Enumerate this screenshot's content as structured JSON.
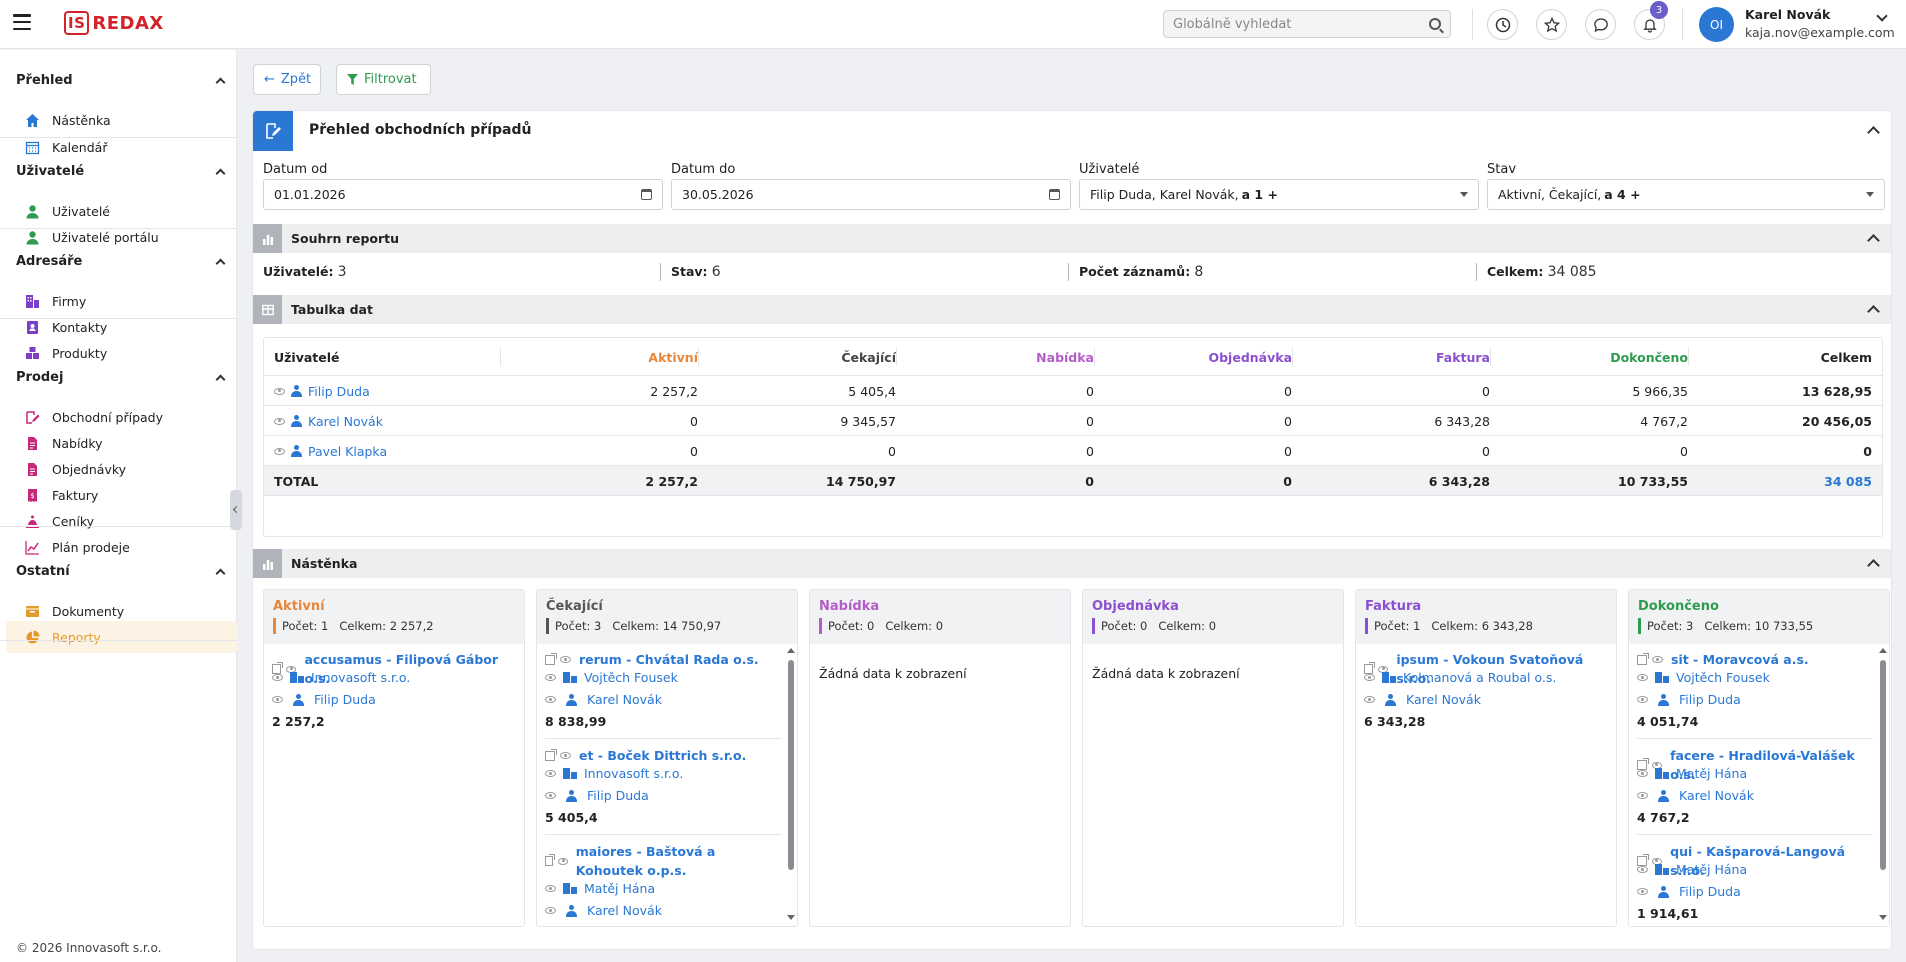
{
  "header": {
    "logo_box": "IS",
    "logo_text": "REDAX",
    "search_placeholder": "Globálně vyhledat",
    "notif_count": "3",
    "avatar_initials": "OI",
    "user_name": "Karel Novák",
    "user_email": "kaja.nov@example.com"
  },
  "sidebar": {
    "sections": [
      {
        "title": "Přehled",
        "items": [
          {
            "label": "Nástěnka",
            "icon": "home-icon"
          },
          {
            "label": "Kalendář",
            "icon": "calendar-icon"
          }
        ]
      },
      {
        "title": "Uživatelé",
        "items": [
          {
            "label": "Uživatelé",
            "icon": "user-icon"
          },
          {
            "label": "Uživatelé portálu",
            "icon": "user-icon"
          }
        ]
      },
      {
        "title": "Adresáře",
        "items": [
          {
            "label": "Firmy",
            "icon": "building-icon"
          },
          {
            "label": "Kontakty",
            "icon": "contact-icon"
          },
          {
            "label": "Produkty",
            "icon": "product-icon"
          }
        ]
      },
      {
        "title": "Prodej",
        "items": [
          {
            "label": "Obchodní případy",
            "icon": "deal-icon"
          },
          {
            "label": "Nabídky",
            "icon": "document-icon"
          },
          {
            "label": "Objednávky",
            "icon": "document-icon"
          },
          {
            "label": "Faktury",
            "icon": "invoice-icon"
          },
          {
            "label": "Ceníky",
            "icon": "pricelist-icon"
          },
          {
            "label": "Plán prodeje",
            "icon": "chart-line-icon"
          }
        ]
      },
      {
        "title": "Ostatní",
        "items": [
          {
            "label": "Dokumenty",
            "icon": "folder-icon"
          },
          {
            "label": "Reporty",
            "icon": "pie-chart-icon"
          }
        ]
      }
    ],
    "footer": "© 2026 Innovasoft s.r.o."
  },
  "toolbar": {
    "back_label": "Zpět",
    "filter_label": "Filtrovat"
  },
  "panel": {
    "title": "Přehled obchodních případů"
  },
  "filters": {
    "date_from": {
      "label": "Datum od",
      "value": "01.01.2026"
    },
    "date_to": {
      "label": "Datum do",
      "value": "30.05.2026"
    },
    "users": {
      "label": "Uživatelé",
      "value": "Filip Duda, Karel Novák, ",
      "more": "a 1 +"
    },
    "state": {
      "label": "Stav",
      "value": "Aktivní, Čekající, ",
      "more": "a 4 +"
    }
  },
  "summary": {
    "title": "Souhrn reportu",
    "users_label": "Uživatelé:",
    "users_value": "3",
    "state_label": "Stav:",
    "state_value": "6",
    "records_label": "Počet záznamů:",
    "records_value": "8",
    "total_label": "Celkem:",
    "total_value": "34 085"
  },
  "table": {
    "title": "Tabulka dat",
    "columns": [
      "Uživatelé",
      "Aktivní",
      "Čekající",
      "Nabídka",
      "Objednávka",
      "Faktura",
      "Dokončeno",
      "Celkem"
    ],
    "column_colors": [
      "#222222",
      "#e8873a",
      "#444444",
      "#b45cc8",
      "#8c4fcf",
      "#8c4fcf",
      "#2e9b4f",
      "#222222"
    ],
    "rows": [
      {
        "name": "Filip Duda",
        "values": [
          "2 257,2",
          "5 405,4",
          "0",
          "0",
          "0",
          "5 966,35",
          "13 628,95"
        ]
      },
      {
        "name": "Karel Novák",
        "values": [
          "0",
          "9 345,57",
          "0",
          "0",
          "6 343,28",
          "4 767,2",
          "20 456,05"
        ]
      },
      {
        "name": "Pavel Klapka",
        "values": [
          "0",
          "0",
          "0",
          "0",
          "0",
          "0",
          "0"
        ]
      }
    ],
    "total": {
      "name": "TOTAL",
      "values": [
        "2 257,2",
        "14 750,97",
        "0",
        "0",
        "6 343,28",
        "10 733,55",
        "34 085"
      ]
    }
  },
  "board": {
    "title": "Nástěnka",
    "count_label": "Počet:",
    "total_label": "Celkem:",
    "empty_text": "Žádná data k zobrazení",
    "columns": [
      {
        "title": "Aktivní",
        "color": "#e8873a",
        "count": "1",
        "total": "2 257,2",
        "cards": [
          {
            "title": "accusamus - Filipová Gábor o.s.",
            "company": "Innovasoft s.r.o.",
            "user": "Filip Duda",
            "amount": "2 257,2"
          }
        ]
      },
      {
        "title": "Čekající",
        "color": "#555555",
        "count": "3",
        "total": "14 750,97",
        "cards": [
          {
            "title": "rerum - Chvátal Rada o.s.",
            "company": "Vojtěch Fousek",
            "user": "Karel Novák",
            "amount": "8 838,99"
          },
          {
            "title": "et - Boček Dittrich s.r.o.",
            "company": "Innovasoft s.r.o.",
            "user": "Filip Duda",
            "amount": "5 405,4"
          },
          {
            "title": "maiores - Baštová a Kohoutek o.p.s.",
            "company": "Matěj Hána",
            "user": "Karel Novák",
            "amount": ""
          }
        ]
      },
      {
        "title": "Nabídka",
        "color": "#b45cc8",
        "count": "0",
        "total": "0",
        "cards": []
      },
      {
        "title": "Objednávka",
        "color": "#8c4fcf",
        "count": "0",
        "total": "0",
        "cards": []
      },
      {
        "title": "Faktura",
        "color": "#8c4fcf",
        "count": "1",
        "total": "6 343,28",
        "cards": [
          {
            "title": "ipsum - Vokoun Svatoňová s.r.o.",
            "company": "Kolmanová a Roubal o.s.",
            "user": "Karel Novák",
            "amount": "6 343,28"
          }
        ]
      },
      {
        "title": "Dokončeno",
        "color": "#2e9b4f",
        "count": "3",
        "total": "10 733,55",
        "cards": [
          {
            "title": "sit - Moravcová a.s.",
            "company": "Vojtěch Fousek",
            "user": "Filip Duda",
            "amount": "4 051,74"
          },
          {
            "title": "facere - Hradilová-Valášek o.s.",
            "company": "Matěj Hána",
            "user": "Karel Novák",
            "amount": "4 767,2"
          },
          {
            "title": "qui - Kašparová-Langová s.r.o.",
            "company": "Matěj Hána",
            "user": "Filip Duda",
            "amount": "1 914,61"
          }
        ]
      }
    ]
  },
  "colors": {
    "accent": "#2a78d4",
    "brand": "#d2232a",
    "active_nav": "#e49b2e"
  }
}
